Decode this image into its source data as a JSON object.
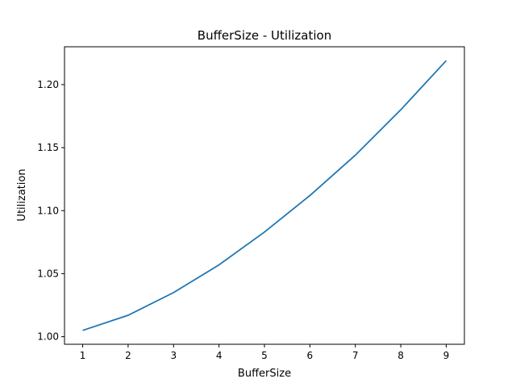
{
  "chart_data": {
    "type": "line",
    "title": "BufferSize - Utilization",
    "xlabel": "BufferSize",
    "ylabel": "Utilization",
    "x": [
      1,
      2,
      3,
      4,
      5,
      6,
      7,
      8,
      9
    ],
    "series": [
      {
        "values": [
          1.005,
          1.017,
          1.035,
          1.057,
          1.083,
          1.112,
          1.144,
          1.18,
          1.219
        ]
      }
    ],
    "xlim": [
      0.6,
      9.4
    ],
    "ylim": [
      0.994,
      1.23
    ],
    "x_ticks": [
      1,
      2,
      3,
      4,
      5,
      6,
      7,
      8,
      9
    ],
    "x_tick_labels": [
      "1",
      "2",
      "3",
      "4",
      "5",
      "6",
      "7",
      "8",
      "9"
    ],
    "y_ticks": [
      1.0,
      1.05,
      1.1,
      1.15,
      1.2
    ],
    "y_tick_labels": [
      "1.00",
      "1.05",
      "1.10",
      "1.15",
      "1.20"
    ],
    "grid": false,
    "legend": "none",
    "line_color": "#1f77b4"
  }
}
